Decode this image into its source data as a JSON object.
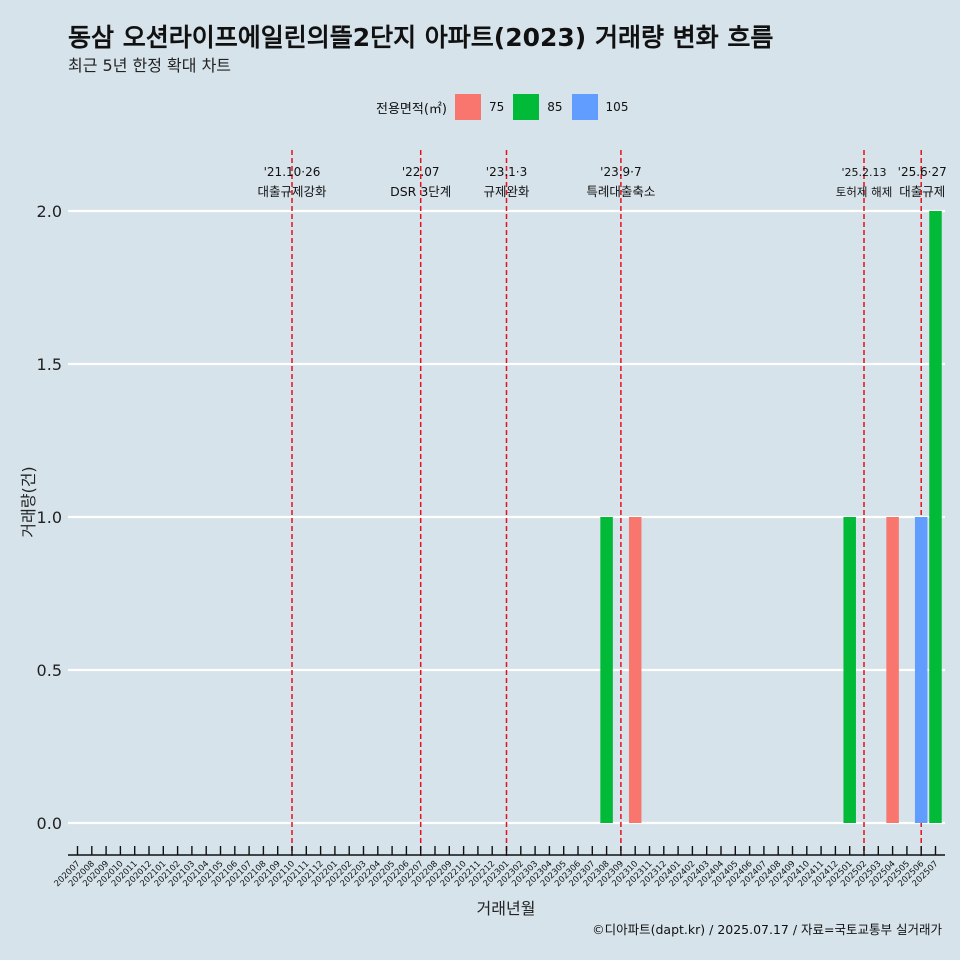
{
  "header": {
    "title": "동삼 오션라이프에일린의뜰2단지 아파트(2023) 거래량 변화 흐름",
    "subtitle": "최근 5년 한정 확대 차트"
  },
  "legend": {
    "title": "전용면적(㎡)",
    "items": [
      {
        "label": "75",
        "color": "#f8766d"
      },
      {
        "label": "85",
        "color": "#00ba38"
      },
      {
        "label": "105",
        "color": "#619cff"
      }
    ]
  },
  "caption": "©디아파트(dapt.kr) / 2025.07.17 / 자료=국토교통부 실거래가",
  "chart_data": {
    "type": "bar",
    "title": "동삼 오션라이프에일린의뜰2단지 아파트(2023) 거래량 변화 흐름",
    "xlabel": "거래년월",
    "ylabel": "거래량(건)",
    "ylim": [
      0,
      2
    ],
    "yticks": [
      "0.0",
      "0.5",
      "1.0",
      "1.5",
      "2.0"
    ],
    "categories": [
      "202007",
      "202008",
      "202009",
      "202010",
      "202011",
      "202012",
      "202101",
      "202102",
      "202103",
      "202104",
      "202105",
      "202106",
      "202107",
      "202108",
      "202109",
      "202110",
      "202111",
      "202112",
      "202201",
      "202202",
      "202203",
      "202204",
      "202205",
      "202206",
      "202207",
      "202208",
      "202209",
      "202210",
      "202211",
      "202212",
      "202301",
      "202302",
      "202303",
      "202304",
      "202305",
      "202306",
      "202307",
      "202308",
      "202309",
      "202310",
      "202311",
      "202312",
      "202401",
      "202402",
      "202403",
      "202404",
      "202405",
      "202406",
      "202407",
      "202408",
      "202409",
      "202410",
      "202411",
      "202412",
      "202501",
      "202502",
      "202503",
      "202504",
      "202505",
      "202506",
      "202507"
    ],
    "series": [
      {
        "name": "75",
        "color": "#f8766d",
        "points": [
          {
            "x": "202310",
            "y": 1
          },
          {
            "x": "202504",
            "y": 1
          }
        ]
      },
      {
        "name": "85",
        "color": "#00ba38",
        "points": [
          {
            "x": "202308",
            "y": 1
          },
          {
            "x": "202501",
            "y": 1
          },
          {
            "x": "202507",
            "y": 2
          }
        ]
      },
      {
        "name": "105",
        "color": "#619cff",
        "points": [
          {
            "x": "202506",
            "y": 1
          }
        ]
      }
    ],
    "events": [
      {
        "x": "202110",
        "date": "'21.10·26",
        "label": "대출규제강화"
      },
      {
        "x": "202207",
        "date": "'22.07",
        "label": "DSR 3단계"
      },
      {
        "x": "202301",
        "date": "'23.1·3",
        "label": "규제완화"
      },
      {
        "x": "202309",
        "date": "'23.9·7",
        "label": "특례대출축소"
      },
      {
        "x": "202502",
        "date": "'25.2.13",
        "label": "토허제 해제"
      },
      {
        "x": "202506",
        "date": "'25.6·27",
        "label": "대출규제"
      }
    ]
  }
}
